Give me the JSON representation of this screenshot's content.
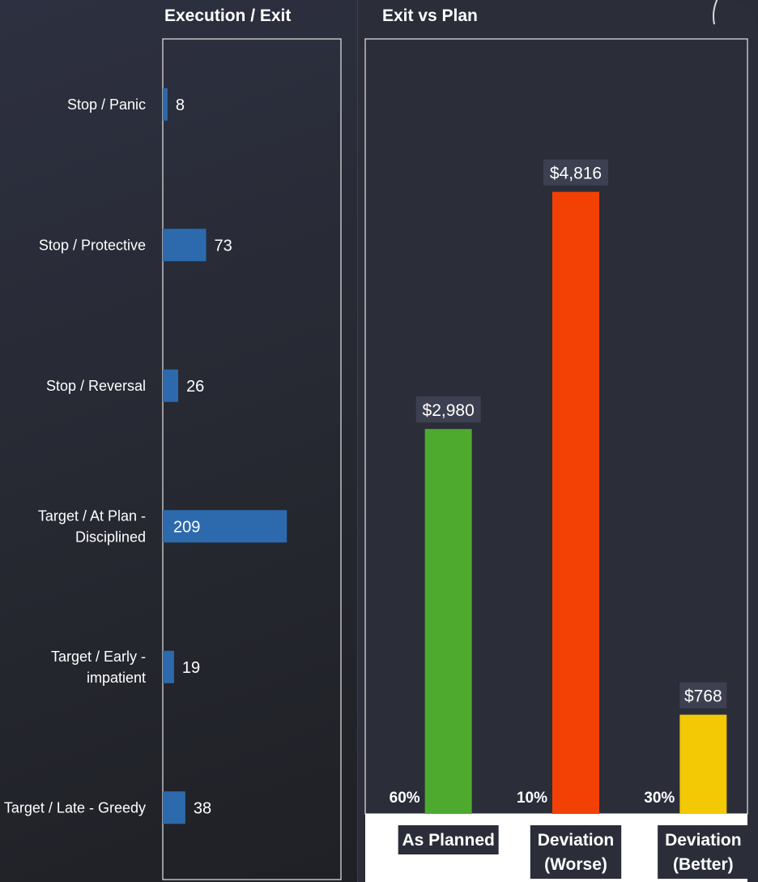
{
  "chart_data": [
    {
      "type": "bar",
      "orientation": "horizontal",
      "title": "Execution / Exit",
      "categories": [
        [
          "Stop / Panic"
        ],
        [
          "Stop / Protective"
        ],
        [
          "Stop / Reversal"
        ],
        [
          "Target / At Plan -",
          "Disciplined"
        ],
        [
          "Target / Early -",
          "impatient"
        ],
        [
          "Target / Late - Greedy"
        ]
      ],
      "values": [
        8,
        73,
        26,
        209,
        19,
        38
      ],
      "xlim": [
        0,
        300
      ],
      "bar_color": "#2c6aad",
      "grid": false,
      "legend": "none"
    },
    {
      "type": "bar",
      "orientation": "vertical",
      "title": "Exit vs Plan",
      "categories": [
        [
          "As Planned"
        ],
        [
          "Deviation",
          "(Worse)"
        ],
        [
          "Deviation",
          "(Better)"
        ]
      ],
      "values": [
        2980,
        4816,
        768
      ],
      "value_labels": [
        "$2,980",
        "$4,816",
        "$768"
      ],
      "percent_labels": [
        "60%",
        "10%",
        "30%"
      ],
      "colors": [
        "#4eaa2f",
        "#f34105",
        "#f3c805"
      ],
      "ylim": [
        0,
        6000
      ],
      "grid": false,
      "legend": "none"
    }
  ]
}
